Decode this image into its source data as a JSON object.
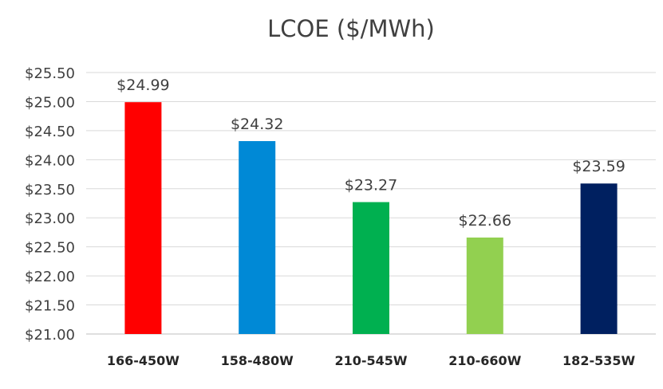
{
  "chart_data": {
    "type": "bar",
    "title": "LCOE ($/MWh)",
    "xlabel": "",
    "ylabel": "",
    "categories": [
      "166-450W",
      "158-480W",
      "210-545W",
      "210-660W",
      "182-535W"
    ],
    "values": [
      24.99,
      24.32,
      23.27,
      22.66,
      23.59
    ],
    "data_labels": [
      "$24.99",
      "$24.32",
      "$23.27",
      "$22.66",
      "$23.59"
    ],
    "colors": [
      "#FF0000",
      "#0089D6",
      "#00B050",
      "#92D050",
      "#002060"
    ],
    "ylim": [
      21.0,
      25.5
    ],
    "yticks": [
      21.0,
      21.5,
      22.0,
      22.5,
      23.0,
      23.5,
      24.0,
      24.5,
      25.0,
      25.5
    ],
    "ytick_labels": [
      "$21.00",
      "$21.50",
      "$22.00",
      "$22.50",
      "$23.00",
      "$23.50",
      "$24.00",
      "$24.50",
      "$25.00",
      "$25.50"
    ],
    "grid": true,
    "legend": "none"
  }
}
